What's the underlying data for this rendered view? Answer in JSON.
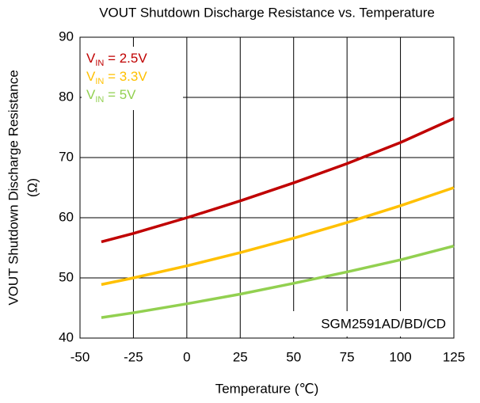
{
  "chart_data": {
    "type": "line",
    "title": "VOUT Shutdown Discharge Resistance vs. Temperature",
    "x_label": "Temperature (℃)",
    "y_label": [
      "VOUT Shutdown Discharge Resistance",
      "(Ω)"
    ],
    "annotation": "SGM2591AD/BD/CD",
    "x": [
      -40,
      -25,
      0,
      25,
      50,
      75,
      100,
      125
    ],
    "series": [
      {
        "name": "VIN = 2.5V",
        "color": "#c00000",
        "values": [
          56,
          57.4,
          60,
          62.8,
          65.8,
          69.0,
          72.5,
          76.5
        ]
      },
      {
        "name": "VIN = 3.3V",
        "color": "#ffc000",
        "values": [
          48.9,
          50,
          52,
          54.2,
          56.6,
          59.2,
          62,
          65
        ]
      },
      {
        "name": "VIN = 5V",
        "color": "#92d050",
        "values": [
          43.4,
          44.2,
          45.7,
          47.3,
          49.1,
          51.0,
          53.0,
          55.3
        ]
      }
    ],
    "xlim": [
      -50,
      125
    ],
    "xticks": [
      -50,
      -25,
      0,
      25,
      50,
      75,
      100,
      125
    ],
    "ylim": [
      40,
      90
    ],
    "yticks": [
      40,
      50,
      60,
      70,
      80,
      90
    ],
    "grid": true,
    "legend": "upper left"
  }
}
